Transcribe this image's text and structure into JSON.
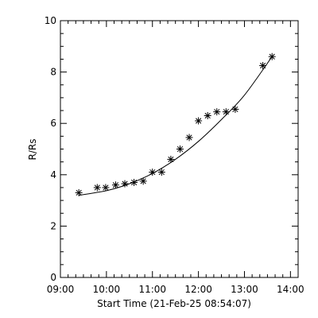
{
  "chart_data": {
    "type": "scatter",
    "title": "",
    "xlabel": "Start Time (21-Feb-25 08:54:07)",
    "ylabel": "R/Rs",
    "x_unit": "time of day (hours)",
    "xlim": [
      "09:00",
      "14:10"
    ],
    "ylim": [
      0,
      10
    ],
    "x_ticks": [
      "09:00",
      "10:00",
      "11:00",
      "12:00",
      "13:00",
      "14:00"
    ],
    "y_ticks": [
      "0",
      "2",
      "4",
      "6",
      "8",
      "10"
    ],
    "grid": false,
    "marker": "asterisk",
    "series": [
      {
        "kind": "points",
        "x": [
          "09:24",
          "09:48",
          "09:59",
          "10:12",
          "10:24",
          "10:36",
          "10:48",
          "11:00",
          "11:12",
          "11:24",
          "11:36",
          "11:48",
          "12:00",
          "12:12",
          "12:24",
          "12:36",
          "12:48",
          "13:24",
          "13:36"
        ],
        "y": [
          3.3,
          3.5,
          3.5,
          3.6,
          3.65,
          3.7,
          3.75,
          4.1,
          4.1,
          4.6,
          5.0,
          5.45,
          6.1,
          6.3,
          6.45,
          6.45,
          6.55,
          8.25,
          8.6
        ]
      },
      {
        "kind": "fit",
        "x": [
          "09:24",
          "10:00",
          "10:30",
          "11:00",
          "11:30",
          "12:00",
          "12:30",
          "13:00",
          "13:36"
        ],
        "y": [
          3.2,
          3.38,
          3.65,
          4.05,
          4.6,
          5.3,
          6.15,
          7.1,
          8.6
        ]
      }
    ],
    "colors": {
      "axis": "#000000",
      "points": "#000000",
      "fit": "#000000"
    }
  }
}
